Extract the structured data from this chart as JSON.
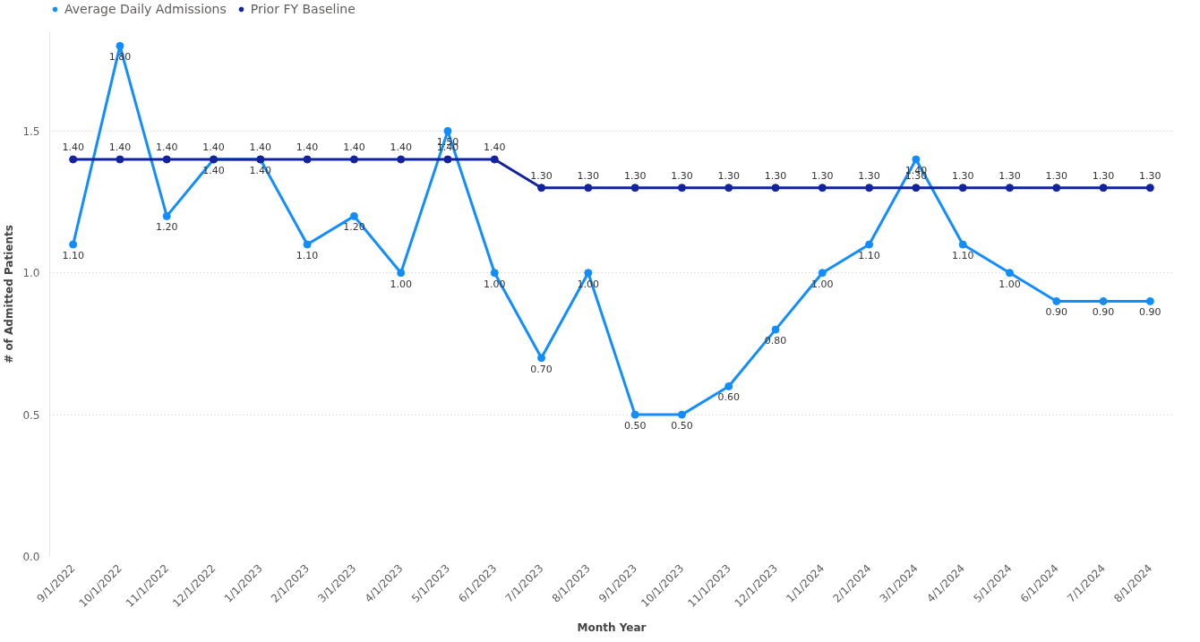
{
  "chart_data": {
    "type": "line",
    "xlabel": "Month Year",
    "ylabel": "# of Admitted Patients",
    "categories": [
      "9/1/2022",
      "10/1/2022",
      "11/1/2022",
      "12/1/2022",
      "1/1/2023",
      "2/1/2023",
      "3/1/2023",
      "4/1/2023",
      "5/1/2023",
      "6/1/2023",
      "7/1/2023",
      "8/1/2023",
      "9/1/2023",
      "10/1/2023",
      "11/1/2023",
      "12/1/2023",
      "1/1/2024",
      "2/1/2024",
      "3/1/2024",
      "4/1/2024",
      "5/1/2024",
      "6/1/2024",
      "7/1/2024",
      "8/1/2024"
    ],
    "series": [
      {
        "name": "Average Daily Admissions",
        "color": "#118dff",
        "values": [
          1.1,
          1.8,
          1.2,
          1.4,
          1.4,
          1.1,
          1.2,
          1.0,
          1.5,
          1.0,
          0.7,
          1.0,
          0.5,
          0.5,
          0.6,
          0.8,
          1.0,
          1.1,
          1.4,
          1.1,
          1.0,
          0.9,
          0.9,
          0.9
        ],
        "value_labels": [
          "1.10",
          "1.80",
          "1.20",
          "1.40",
          "1.40",
          "1.10",
          "1.20",
          "1.00",
          "1.50",
          "1.00",
          "0.70",
          "1.00",
          "0.50",
          "0.50",
          "0.60",
          "0.80",
          "1.00",
          "1.10",
          "1.40",
          "1.10",
          "1.00",
          "0.90",
          "0.90",
          "0.90"
        ]
      },
      {
        "name": "Prior FY Baseline",
        "color": "#12239e",
        "values": [
          1.4,
          1.4,
          1.4,
          1.4,
          1.4,
          1.4,
          1.4,
          1.4,
          1.4,
          1.4,
          1.3,
          1.3,
          1.3,
          1.3,
          1.3,
          1.3,
          1.3,
          1.3,
          1.3,
          1.3,
          1.3,
          1.3,
          1.3,
          1.3
        ],
        "value_labels": [
          "1.40",
          "1.40",
          "1.40",
          "1.40",
          "1.40",
          "1.40",
          "1.40",
          "1.40",
          "1.40",
          "1.40",
          "1.30",
          "1.30",
          "1.30",
          "1.30",
          "1.30",
          "1.30",
          "1.30",
          "1.30",
          "1.30",
          "1.30",
          "1.30",
          "1.30",
          "1.30",
          "1.30"
        ]
      }
    ],
    "ylim": [
      0,
      1.85
    ],
    "yticks": [
      {
        "value": 0,
        "label": "0.0"
      },
      0.5,
      {
        "value": 1,
        "label": "1.0"
      },
      1.5
    ],
    "grid": "y",
    "legend": "top left",
    "marker": "circle",
    "line_style": "solid"
  }
}
